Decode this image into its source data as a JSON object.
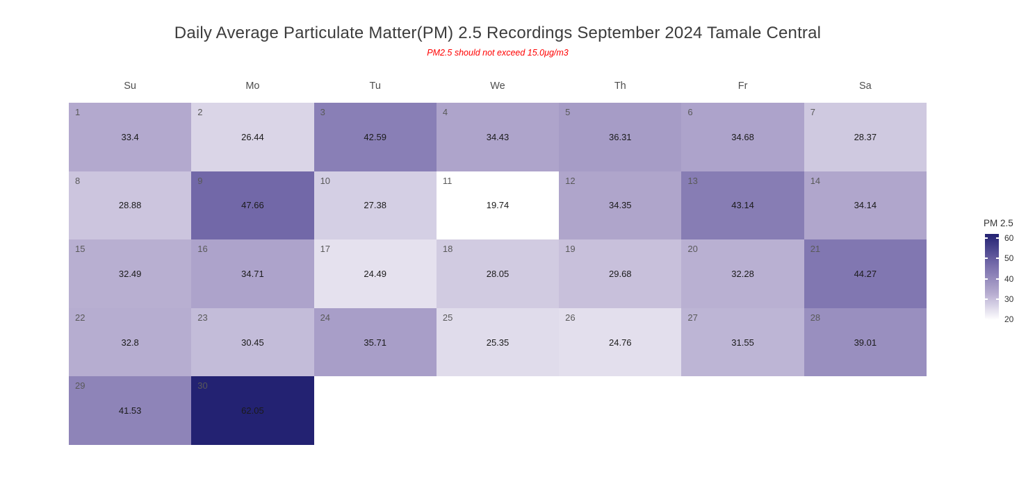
{
  "chart_data": {
    "type": "heatmap",
    "subtype": "calendar-heatmap",
    "title": "Daily Average Particulate Matter(PM) 2.5 Recordings September 2024 Tamale Central",
    "subtitle": "PM2.5 should not exceed 15.0μg/m3",
    "x_categories": [
      "Su",
      "Mo",
      "Tu",
      "We",
      "Th",
      "Fr",
      "Sa"
    ],
    "first_day_column": 0,
    "days": [
      {
        "day": 1,
        "value": 33.4
      },
      {
        "day": 2,
        "value": 26.44
      },
      {
        "day": 3,
        "value": 42.59
      },
      {
        "day": 4,
        "value": 34.43
      },
      {
        "day": 5,
        "value": 36.31
      },
      {
        "day": 6,
        "value": 34.68
      },
      {
        "day": 7,
        "value": 28.37
      },
      {
        "day": 8,
        "value": 28.88
      },
      {
        "day": 9,
        "value": 47.66
      },
      {
        "day": 10,
        "value": 27.38
      },
      {
        "day": 11,
        "value": 19.74
      },
      {
        "day": 12,
        "value": 34.35
      },
      {
        "day": 13,
        "value": 43.14
      },
      {
        "day": 14,
        "value": 34.14
      },
      {
        "day": 15,
        "value": 32.49
      },
      {
        "day": 16,
        "value": 34.71
      },
      {
        "day": 17,
        "value": 24.49
      },
      {
        "day": 18,
        "value": 28.05
      },
      {
        "day": 19,
        "value": 29.68
      },
      {
        "day": 20,
        "value": 32.28
      },
      {
        "day": 21,
        "value": 44.27
      },
      {
        "day": 22,
        "value": 32.8
      },
      {
        "day": 23,
        "value": 30.45
      },
      {
        "day": 24,
        "value": 35.71
      },
      {
        "day": 25,
        "value": 25.35
      },
      {
        "day": 26,
        "value": 24.76
      },
      {
        "day": 27,
        "value": 31.55
      },
      {
        "day": 28,
        "value": 39.01
      },
      {
        "day": 29,
        "value": 41.53
      },
      {
        "day": 30,
        "value": 62.05
      }
    ],
    "value_domain": [
      19.74,
      62.05
    ],
    "legend": {
      "title": "PM 2.5",
      "ticks": [
        60,
        50,
        40,
        30,
        20
      ]
    },
    "color_scale": {
      "stops": [
        {
          "value": 19.74,
          "color": "#ffffff"
        },
        {
          "value": 33.4,
          "color": "#b3a9ce"
        },
        {
          "value": 47.66,
          "color": "#7268a8"
        },
        {
          "value": 62.05,
          "color": "#232272"
        }
      ]
    },
    "style_colors": {
      "title": "#3c3c3c",
      "subtitle": "#ff0000",
      "weekday_label": "#4d4d4d",
      "day_number": "#595959",
      "value_text": "#1a1a1a"
    }
  }
}
